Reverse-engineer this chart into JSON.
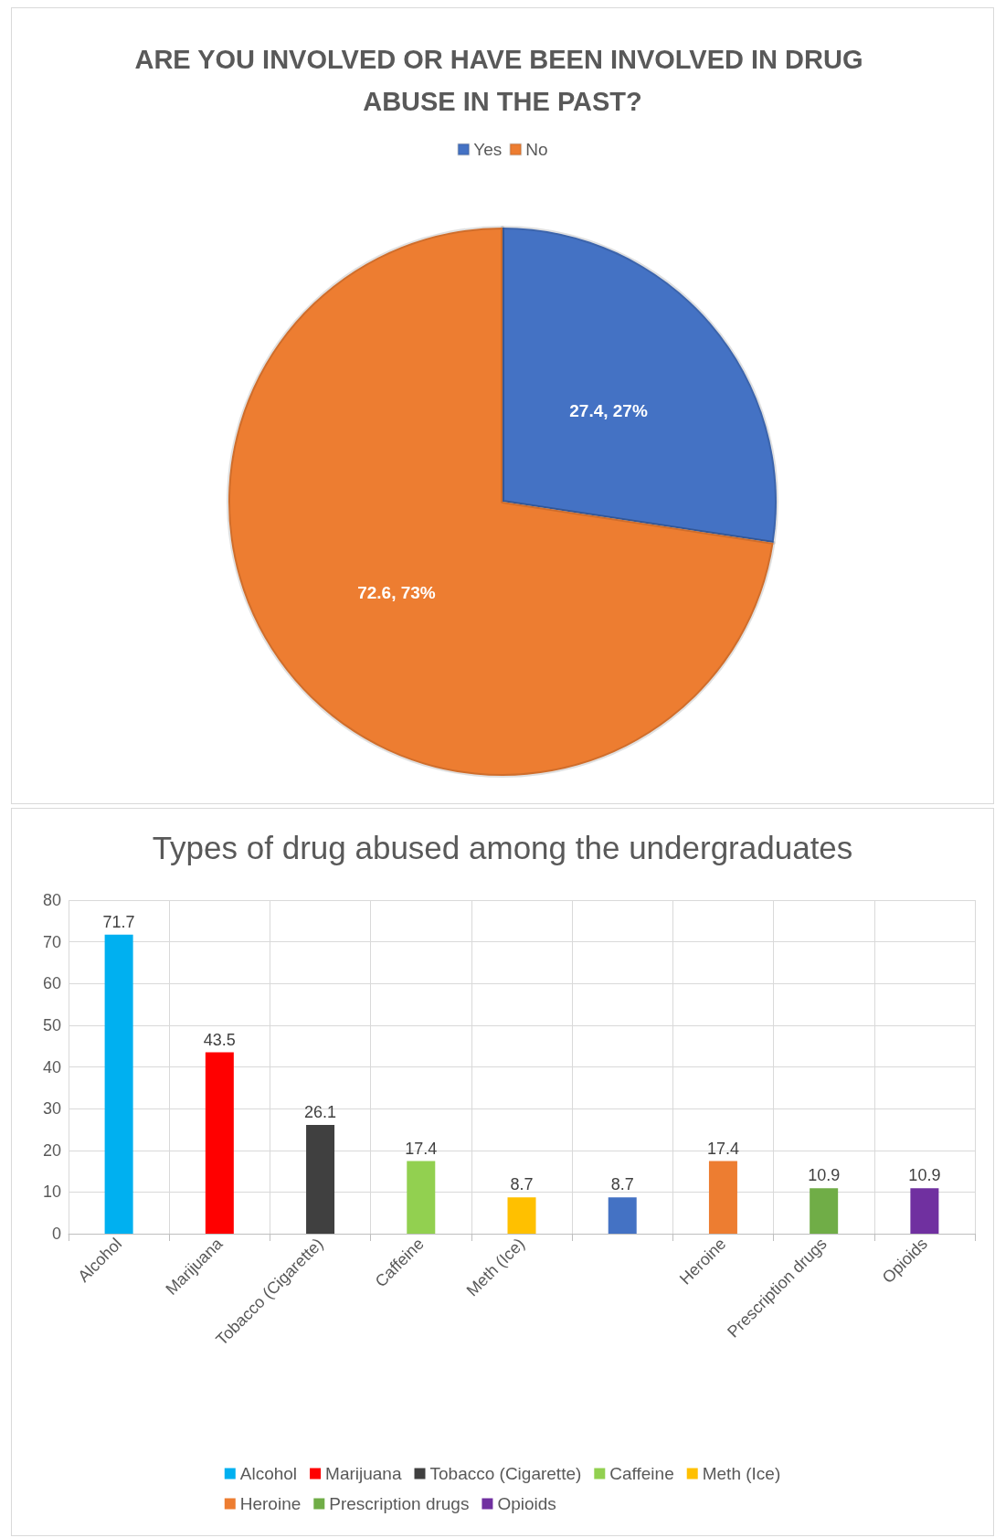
{
  "chart_data": [
    {
      "type": "pie",
      "title": "ARE YOU INVOLVED OR HAVE BEEN INVOLVED IN DRUG ABUSE IN THE PAST?",
      "categories": [
        "Yes",
        "No"
      ],
      "values": [
        27.4,
        72.6
      ],
      "colors": [
        "#4472c4",
        "#ed7d31"
      ],
      "value_labels": [
        "27.4, 27%",
        "72.6, 73%"
      ],
      "legend": "top"
    },
    {
      "type": "bar",
      "title": "Types of drug abused among the undergraduates",
      "categories": [
        "Alcohol",
        "Marijuana",
        "Tobacco (Cigarette)",
        "Caffeine",
        "Meth (Ice)",
        null,
        "Heroine",
        "Prescription drugs",
        "Opioids"
      ],
      "series": [
        {
          "name": "Alcohol",
          "color": "#00b0f0",
          "values": [
            71.7,
            null,
            null,
            null,
            null,
            null,
            null,
            null,
            null
          ]
        },
        {
          "name": "Marijuana",
          "color": "#ff0000",
          "values": [
            null,
            43.5,
            null,
            null,
            null,
            null,
            null,
            null,
            null
          ]
        },
        {
          "name": "Tobacco (Cigarette)",
          "color": "#404040",
          "values": [
            null,
            null,
            26.1,
            null,
            null,
            null,
            null,
            null,
            null
          ]
        },
        {
          "name": "Caffeine",
          "color": "#92d050",
          "values": [
            null,
            null,
            null,
            17.4,
            null,
            null,
            null,
            null,
            null
          ]
        },
        {
          "name": "Meth (Ice)",
          "color": "#ffc000",
          "values": [
            null,
            null,
            null,
            null,
            8.7,
            null,
            null,
            null,
            null
          ]
        },
        {
          "color": "#4472c4",
          "values": [
            null,
            null,
            null,
            null,
            null,
            8.7,
            null,
            null,
            null
          ]
        },
        {
          "name": "Heroine",
          "color": "#ed7d31",
          "values": [
            null,
            null,
            null,
            null,
            null,
            null,
            17.4,
            null,
            null
          ]
        },
        {
          "name": "Prescription drugs",
          "color": "#70ad47",
          "values": [
            null,
            null,
            null,
            null,
            null,
            null,
            null,
            10.9,
            null
          ]
        },
        {
          "name": "Opioids",
          "color": "#7030a0",
          "values": [
            null,
            null,
            null,
            null,
            null,
            null,
            null,
            null,
            10.9
          ]
        }
      ],
      "stacked": true,
      "ylim": [
        0,
        80
      ],
      "yticks": [
        0,
        10,
        20,
        30,
        40,
        50,
        60,
        70,
        80
      ],
      "grid": true,
      "data_labels": true,
      "legend": "bottom"
    }
  ]
}
